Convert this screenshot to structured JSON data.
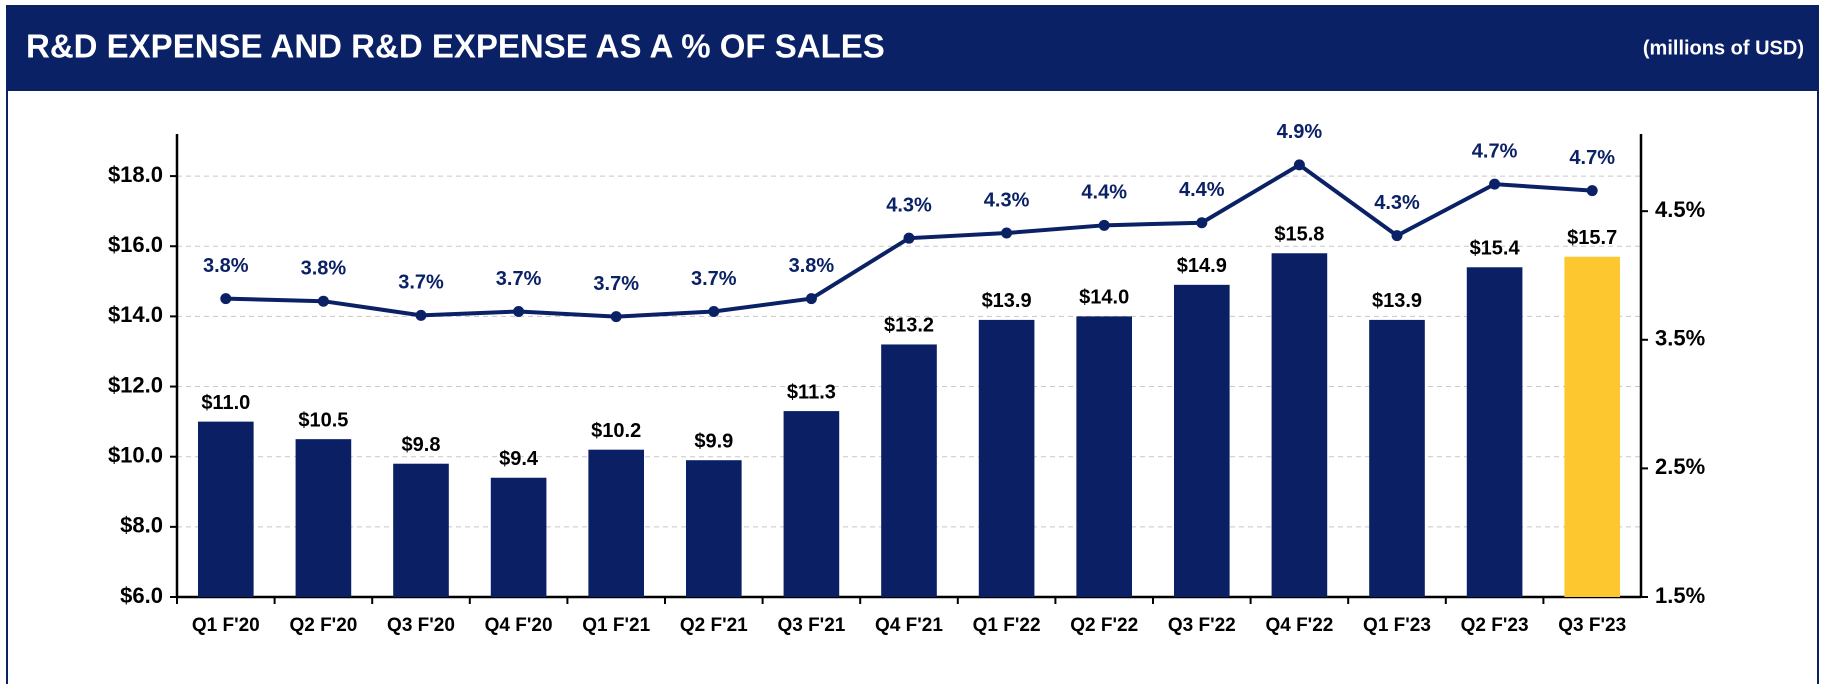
{
  "chart_data": {
    "type": "bar_line",
    "title": "R&D EXPENSE AND R&D EXPENSE AS A % OF SALES",
    "subtitle": "(millions of USD)",
    "categories": [
      "Q1 F'20",
      "Q2 F'20",
      "Q3 F'20",
      "Q4 F'20",
      "Q1 F'21",
      "Q2 F'21",
      "Q3 F'21",
      "Q4 F'21",
      "Q1 F'22",
      "Q2 F'22",
      "Q3 F'22",
      "Q4 F'22",
      "Q1 F'23",
      "Q2 F'23",
      "Q3 F'23"
    ],
    "series": [
      {
        "name": "R&D Expense",
        "type": "bar",
        "colors": [
          "#0b1f65",
          "#0b1f65",
          "#0b1f65",
          "#0b1f65",
          "#0b1f65",
          "#0b1f65",
          "#0b1f65",
          "#0b1f65",
          "#0b1f65",
          "#0b1f65",
          "#0b1f65",
          "#0b1f65",
          "#0b1f65",
          "#0b1f65",
          "#fdc82f"
        ],
        "values": [
          11.0,
          10.5,
          9.8,
          9.4,
          10.2,
          9.9,
          11.3,
          13.2,
          13.9,
          14.0,
          14.9,
          15.8,
          13.9,
          15.4,
          15.7
        ],
        "value_labels": [
          "$11.0",
          "$10.5",
          "$9.8",
          "$9.4",
          "$10.2",
          "$9.9",
          "$11.3",
          "$13.2",
          "$13.9",
          "$14.0",
          "$14.9",
          "$15.8",
          "$13.9",
          "$15.4",
          "$15.7"
        ]
      },
      {
        "name": "R&D Expense as % of Sales",
        "type": "line",
        "axis": "y2",
        "color": "#0b2166",
        "values": [
          3.82,
          3.8,
          3.69,
          3.72,
          3.68,
          3.72,
          3.82,
          4.29,
          4.33,
          4.39,
          4.41,
          4.86,
          4.31,
          4.71,
          4.66
        ],
        "value_labels": [
          "3.8%",
          "3.8%",
          "3.7%",
          "3.7%",
          "3.7%",
          "3.7%",
          "3.8%",
          "4.3%",
          "4.3%",
          "4.4%",
          "4.4%",
          "4.9%",
          "4.3%",
          "4.7%",
          "4.7%"
        ]
      }
    ],
    "ylim": [
      6,
      19.2
    ],
    "yticks": [
      {
        "value": 6,
        "label": "$6.0"
      },
      {
        "value": 8,
        "label": "$8.0"
      },
      {
        "value": 10,
        "label": "$10.0"
      },
      {
        "value": 12,
        "label": "$12.0"
      },
      {
        "value": 14,
        "label": "$14.0"
      },
      {
        "value": 16,
        "label": "$16.0"
      },
      {
        "value": 18,
        "label": "$18.0"
      }
    ],
    "y2lim": [
      1.5,
      5.1
    ],
    "y2ticks": [
      {
        "value": 1.5,
        "label": "1.5%"
      },
      {
        "value": 2.5,
        "label": "2.5%"
      },
      {
        "value": 3.5,
        "label": "3.5%"
      },
      {
        "value": 4.5,
        "label": "4.5%"
      }
    ],
    "grid": true
  }
}
